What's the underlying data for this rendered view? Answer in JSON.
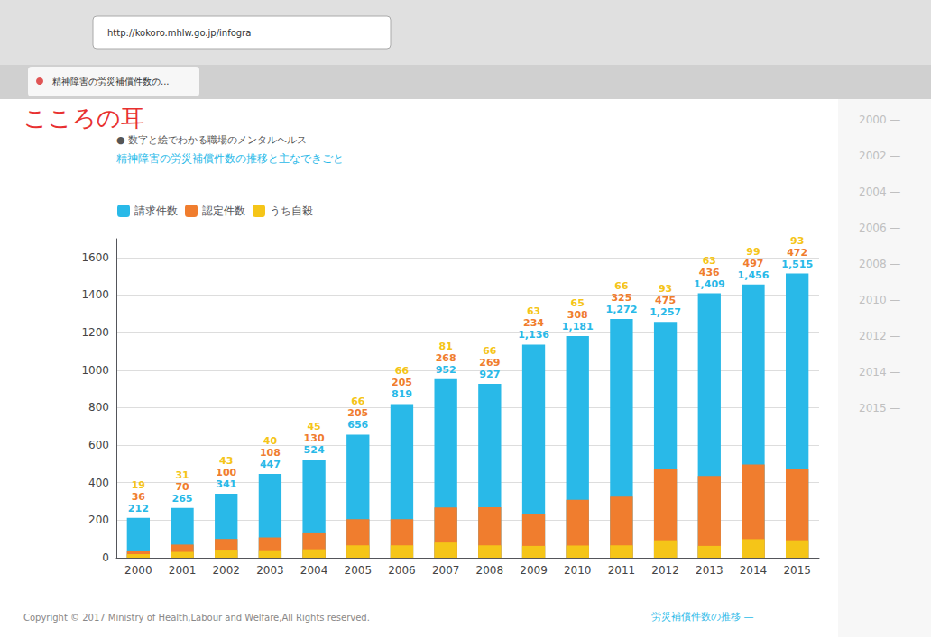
{
  "chart_data": {
    "type": "bar",
    "title": "精神障害の労災補償件数の推移と主なできごと",
    "subtitle": "● 数字と絵でわかる職場のメンタルヘルス",
    "annotations": [
      "こころの耳",
      "http://kokoro.mhlw.go.jp/infogra",
      "精神障害の労災補償件数の...",
      "2000 —",
      "2002 —",
      "2004 —",
      "2006 —",
      "2008 —",
      "2010 —",
      "2012 —",
      "2014 —",
      "2015 —",
      "Copyright © 2017 Ministry of Health,Labour and Welfare,All Rights reserved.",
      "労災補償件数の推移 —"
    ],
    "categories": [
      "2000",
      "2001",
      "2002",
      "2003",
      "2004",
      "2005",
      "2006",
      "2007",
      "2008",
      "2009",
      "2010",
      "2011",
      "2012",
      "2013",
      "2014",
      "2015"
    ],
    "series": [
      {
        "name": "請求件数",
        "color": "#29b9e8",
        "values": [
          212,
          265,
          341,
          447,
          524,
          656,
          819,
          952,
          927,
          1136,
          1181,
          1272,
          1257,
          1409,
          1456,
          1515
        ],
        "value_labels": [
          "212",
          "265",
          "341",
          "447",
          "524",
          "656",
          "819",
          "952",
          "927",
          "1,136",
          "1,181",
          "1,272",
          "1,257",
          "1,409",
          "1,456",
          "1,515"
        ]
      },
      {
        "name": "認定件数",
        "color": "#f07d2e",
        "values": [
          36,
          70,
          100,
          108,
          130,
          205,
          205,
          268,
          269,
          234,
          308,
          325,
          475,
          436,
          497,
          472
        ]
      },
      {
        "name": "うち自殺",
        "color": "#f5c518",
        "values": [
          19,
          31,
          43,
          40,
          45,
          66,
          66,
          81,
          66,
          63,
          65,
          66,
          93,
          63,
          99,
          93
        ]
      }
    ],
    "ylim": [
      0,
      1700
    ],
    "yticks": [
      0,
      200,
      400,
      600,
      800,
      1000,
      1200,
      1400,
      1600
    ],
    "grid": true,
    "legend": "upper left",
    "data_labels": true
  }
}
